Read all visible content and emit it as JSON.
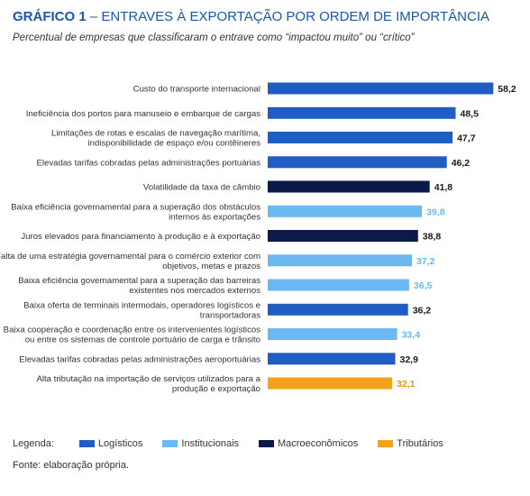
{
  "header": {
    "title_number": "GRÁFICO 1",
    "title_text": " – ENTRAVES À EXPORTAÇÃO POR ORDEM DE IMPORTÂNCIA",
    "subtitle": "Percentual de empresas que classificaram o entrave como “impactou muito” ou “crítico”"
  },
  "colors": {
    "Logísticos": "#1f5dc4",
    "Institucionais": "#6bb9f0",
    "Macroeconômicos": "#0c1a4a",
    "Tributários": "#f5a21b"
  },
  "chart_data": {
    "type": "bar",
    "orientation": "horizontal",
    "title": "ENTRAVES À EXPORTAÇÃO POR ORDEM DE IMPORTÂNCIA",
    "subtitle": "Percentual de empresas que classificaram o entrave como “impactou muito” ou “crítico”",
    "xlim": [
      0,
      60
    ],
    "grid": false,
    "legend_position": "bottom",
    "bars": [
      {
        "label": [
          "Custo do transporte internacional"
        ],
        "value": 58.2,
        "display": "58,2",
        "group": "Logísticos"
      },
      {
        "label": [
          "Ineficiência dos portos para manuseio e embarque de cargas"
        ],
        "value": 48.5,
        "display": "48,5",
        "group": "Logísticos"
      },
      {
        "label": [
          "Limitações de rotas e escalas de navegação marítima,",
          "indisponibilidade de espaço e/ou contêineres"
        ],
        "value": 47.7,
        "display": "47,7",
        "group": "Logísticos"
      },
      {
        "label": [
          "Elevadas tarifas cobradas pelas administrações portuárias"
        ],
        "value": 46.2,
        "display": "46,2",
        "group": "Logísticos"
      },
      {
        "label": [
          "Volatilidade da taxa de câmbio"
        ],
        "value": 41.8,
        "display": "41,8",
        "group": "Macroeconômicos"
      },
      {
        "label": [
          "Baixa eficiência governamental para a superação dos obstáculos",
          "internos às exportações"
        ],
        "value": 39.8,
        "display": "39,8",
        "group": "Institucionais"
      },
      {
        "label": [
          "Juros elevados para financiamento à produção e à exportação"
        ],
        "value": 38.8,
        "display": "38,8",
        "group": "Macroeconômicos"
      },
      {
        "label": [
          "Falta de uma estratégia governamental para o comércio exterior com",
          "objetivos, metas e prazos"
        ],
        "value": 37.2,
        "display": "37,2",
        "group": "Institucionais"
      },
      {
        "label": [
          "Baixa eficiência governamental para a superação das barreiras",
          "existentes nos mercados externos"
        ],
        "value": 36.5,
        "display": "36,5",
        "group": "Institucionais"
      },
      {
        "label": [
          "Baixa oferta de terminais intermodais, operadores logísticos e",
          "transportadoras"
        ],
        "value": 36.2,
        "display": "36,2",
        "group": "Logísticos"
      },
      {
        "label": [
          "Baixa cooperação e coordenação entre os intervenientes logísticos",
          "ou entre os sistemas de controle portuário de carga e trânsito"
        ],
        "value": 33.4,
        "display": "33,4",
        "group": "Institucionais"
      },
      {
        "label": [
          "Elevadas tarifas cobradas pelas administrações aeroportuárias"
        ],
        "value": 32.9,
        "display": "32,9",
        "group": "Logísticos"
      },
      {
        "label": [
          "Alta tributação na importação de serviços utilizados para a",
          "produção e exportação"
        ],
        "value": 32.1,
        "display": "32,1",
        "group": "Tributários"
      }
    ]
  },
  "legend": {
    "title": "Legenda:",
    "items": [
      {
        "label": "Logísticos",
        "color": "#1f5dc4"
      },
      {
        "label": "Institucionais",
        "color": "#6bb9f0"
      },
      {
        "label": "Macroeconômicos",
        "color": "#0c1a4a"
      },
      {
        "label": "Tributários",
        "color": "#f5a21b"
      }
    ]
  },
  "source": "Fonte: elaboração própria."
}
